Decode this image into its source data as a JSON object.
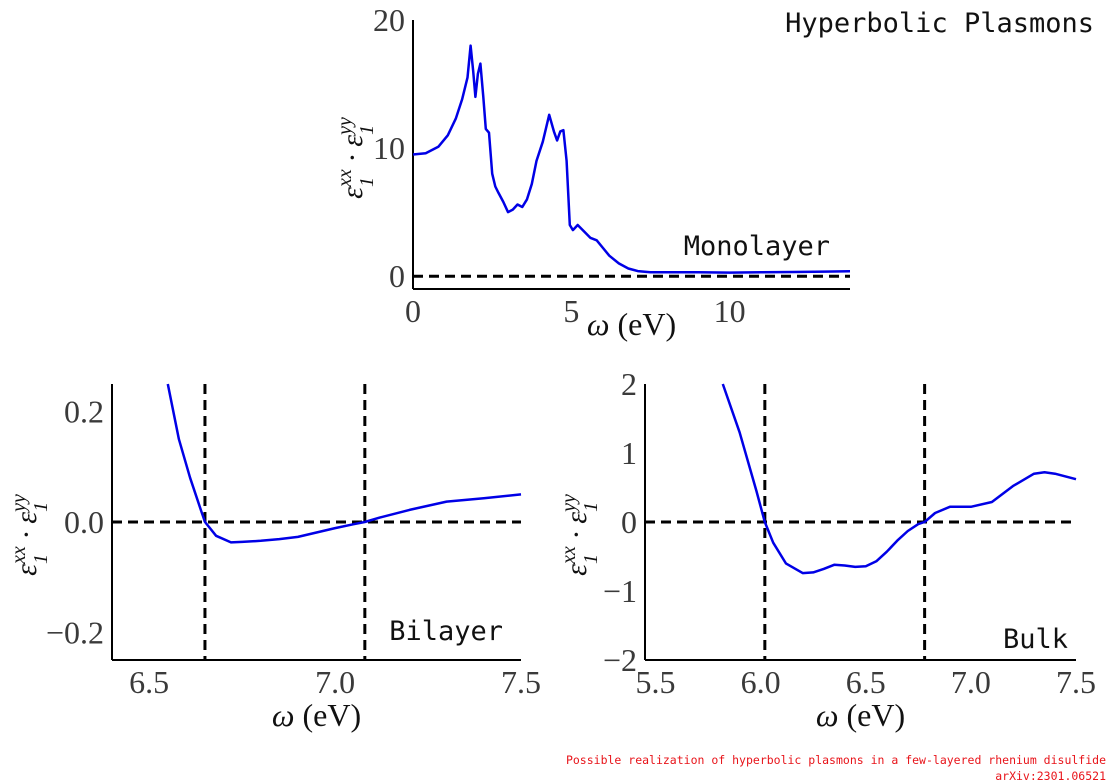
{
  "title": "Hyperbolic Plasmons",
  "footer": {
    "line1": "Possible realization of hyperbolic plasmons in a few-layered rhenium disulfide",
    "line2": "arXiv:2301.06521",
    "color": "#e8141a"
  },
  "colors": {
    "curve": "#0000e6",
    "reference": "#000000",
    "axis": "#000000"
  },
  "chart_data": [
    {
      "id": "monolayer",
      "type": "line",
      "label": "Monolayer",
      "xlabel": "ω (eV)",
      "ylabel": "ε1xx · ε1yy",
      "xlim": [
        0,
        13.8
      ],
      "ylim": [
        -1,
        20
      ],
      "xticks": [
        0,
        5,
        10
      ],
      "yticks": [
        0,
        10,
        20
      ],
      "hlines": [
        0
      ],
      "vlines": [],
      "grid": false,
      "series": [
        {
          "x": [
            0,
            0.4,
            0.8,
            1.1,
            1.35,
            1.55,
            1.72,
            1.82,
            1.9,
            1.97,
            2.05,
            2.13,
            2.22,
            2.3,
            2.4,
            2.5,
            2.6,
            2.7,
            2.85,
            3.0,
            3.15,
            3.3,
            3.45,
            3.6,
            3.75,
            3.9,
            4.1,
            4.3,
            4.45,
            4.55,
            4.65,
            4.75,
            4.85,
            4.95,
            5.05,
            5.2,
            5.4,
            5.6,
            5.8,
            6.0,
            6.2,
            6.5,
            6.8,
            7.1,
            7.5,
            8.0,
            9.0,
            10.0,
            11.0,
            12.0,
            13.0,
            13.8
          ],
          "y": [
            9.5,
            9.6,
            10.1,
            11.0,
            12.3,
            13.8,
            15.5,
            18.0,
            16.0,
            14.0,
            15.8,
            16.6,
            14.0,
            11.5,
            11.2,
            8.0,
            7.0,
            6.5,
            5.8,
            5.0,
            5.2,
            5.6,
            5.4,
            6.0,
            7.2,
            9.0,
            10.5,
            12.6,
            11.3,
            10.6,
            11.3,
            11.4,
            9.0,
            4.0,
            3.6,
            4.0,
            3.5,
            3.0,
            2.8,
            2.2,
            1.6,
            1.0,
            0.6,
            0.4,
            0.3,
            0.3,
            0.3,
            0.28,
            0.3,
            0.33,
            0.36,
            0.38
          ]
        }
      ]
    },
    {
      "id": "bilayer",
      "type": "line",
      "label": "Bilayer",
      "xlabel": "ω (eV)",
      "ylabel": "ε1xx · ε1yy",
      "xlim": [
        6.4,
        7.5
      ],
      "ylim": [
        -0.25,
        0.25
      ],
      "xticks": [
        "6.5",
        "7.0",
        "7.5"
      ],
      "yticks": [
        "−0.2",
        "0.0",
        "0.2"
      ],
      "hlines": [
        0
      ],
      "vlines": [
        6.65,
        7.08
      ],
      "grid": false,
      "series": [
        {
          "x": [
            6.55,
            6.58,
            6.61,
            6.64,
            6.65,
            6.68,
            6.72,
            6.75,
            6.8,
            6.85,
            6.9,
            6.95,
            7.0,
            7.05,
            7.08,
            7.12,
            7.2,
            7.3,
            7.4,
            7.5
          ],
          "y": [
            0.25,
            0.15,
            0.08,
            0.02,
            0.0,
            -0.025,
            -0.037,
            -0.036,
            -0.034,
            -0.031,
            -0.027,
            -0.019,
            -0.011,
            -0.004,
            0.0,
            0.008,
            0.022,
            0.037,
            0.043,
            0.05
          ]
        }
      ]
    },
    {
      "id": "bulk",
      "type": "line",
      "label": "Bulk",
      "xlabel": "ω (eV)",
      "ylabel": "ε1xx · ε1yy",
      "xlim": [
        5.45,
        7.5
      ],
      "ylim": [
        -2,
        2
      ],
      "xticks": [
        "5.5",
        "6.0",
        "6.5",
        "7.0",
        "7.5"
      ],
      "yticks": [
        "−2",
        "−1",
        "0",
        "1",
        "2"
      ],
      "hlines": [
        0
      ],
      "vlines": [
        6.02,
        6.78
      ],
      "grid": false,
      "series": [
        {
          "x": [
            5.82,
            5.9,
            5.98,
            6.02,
            6.06,
            6.12,
            6.2,
            6.25,
            6.3,
            6.35,
            6.4,
            6.45,
            6.5,
            6.55,
            6.6,
            6.65,
            6.7,
            6.75,
            6.78,
            6.83,
            6.9,
            7.0,
            7.1,
            7.2,
            7.3,
            7.35,
            7.4,
            7.5
          ],
          "y": [
            2.0,
            1.3,
            0.45,
            0.0,
            -0.3,
            -0.6,
            -0.74,
            -0.73,
            -0.68,
            -0.62,
            -0.63,
            -0.65,
            -0.64,
            -0.57,
            -0.43,
            -0.27,
            -0.13,
            -0.03,
            0.0,
            0.13,
            0.22,
            0.22,
            0.29,
            0.52,
            0.7,
            0.72,
            0.7,
            0.62
          ]
        }
      ]
    }
  ]
}
